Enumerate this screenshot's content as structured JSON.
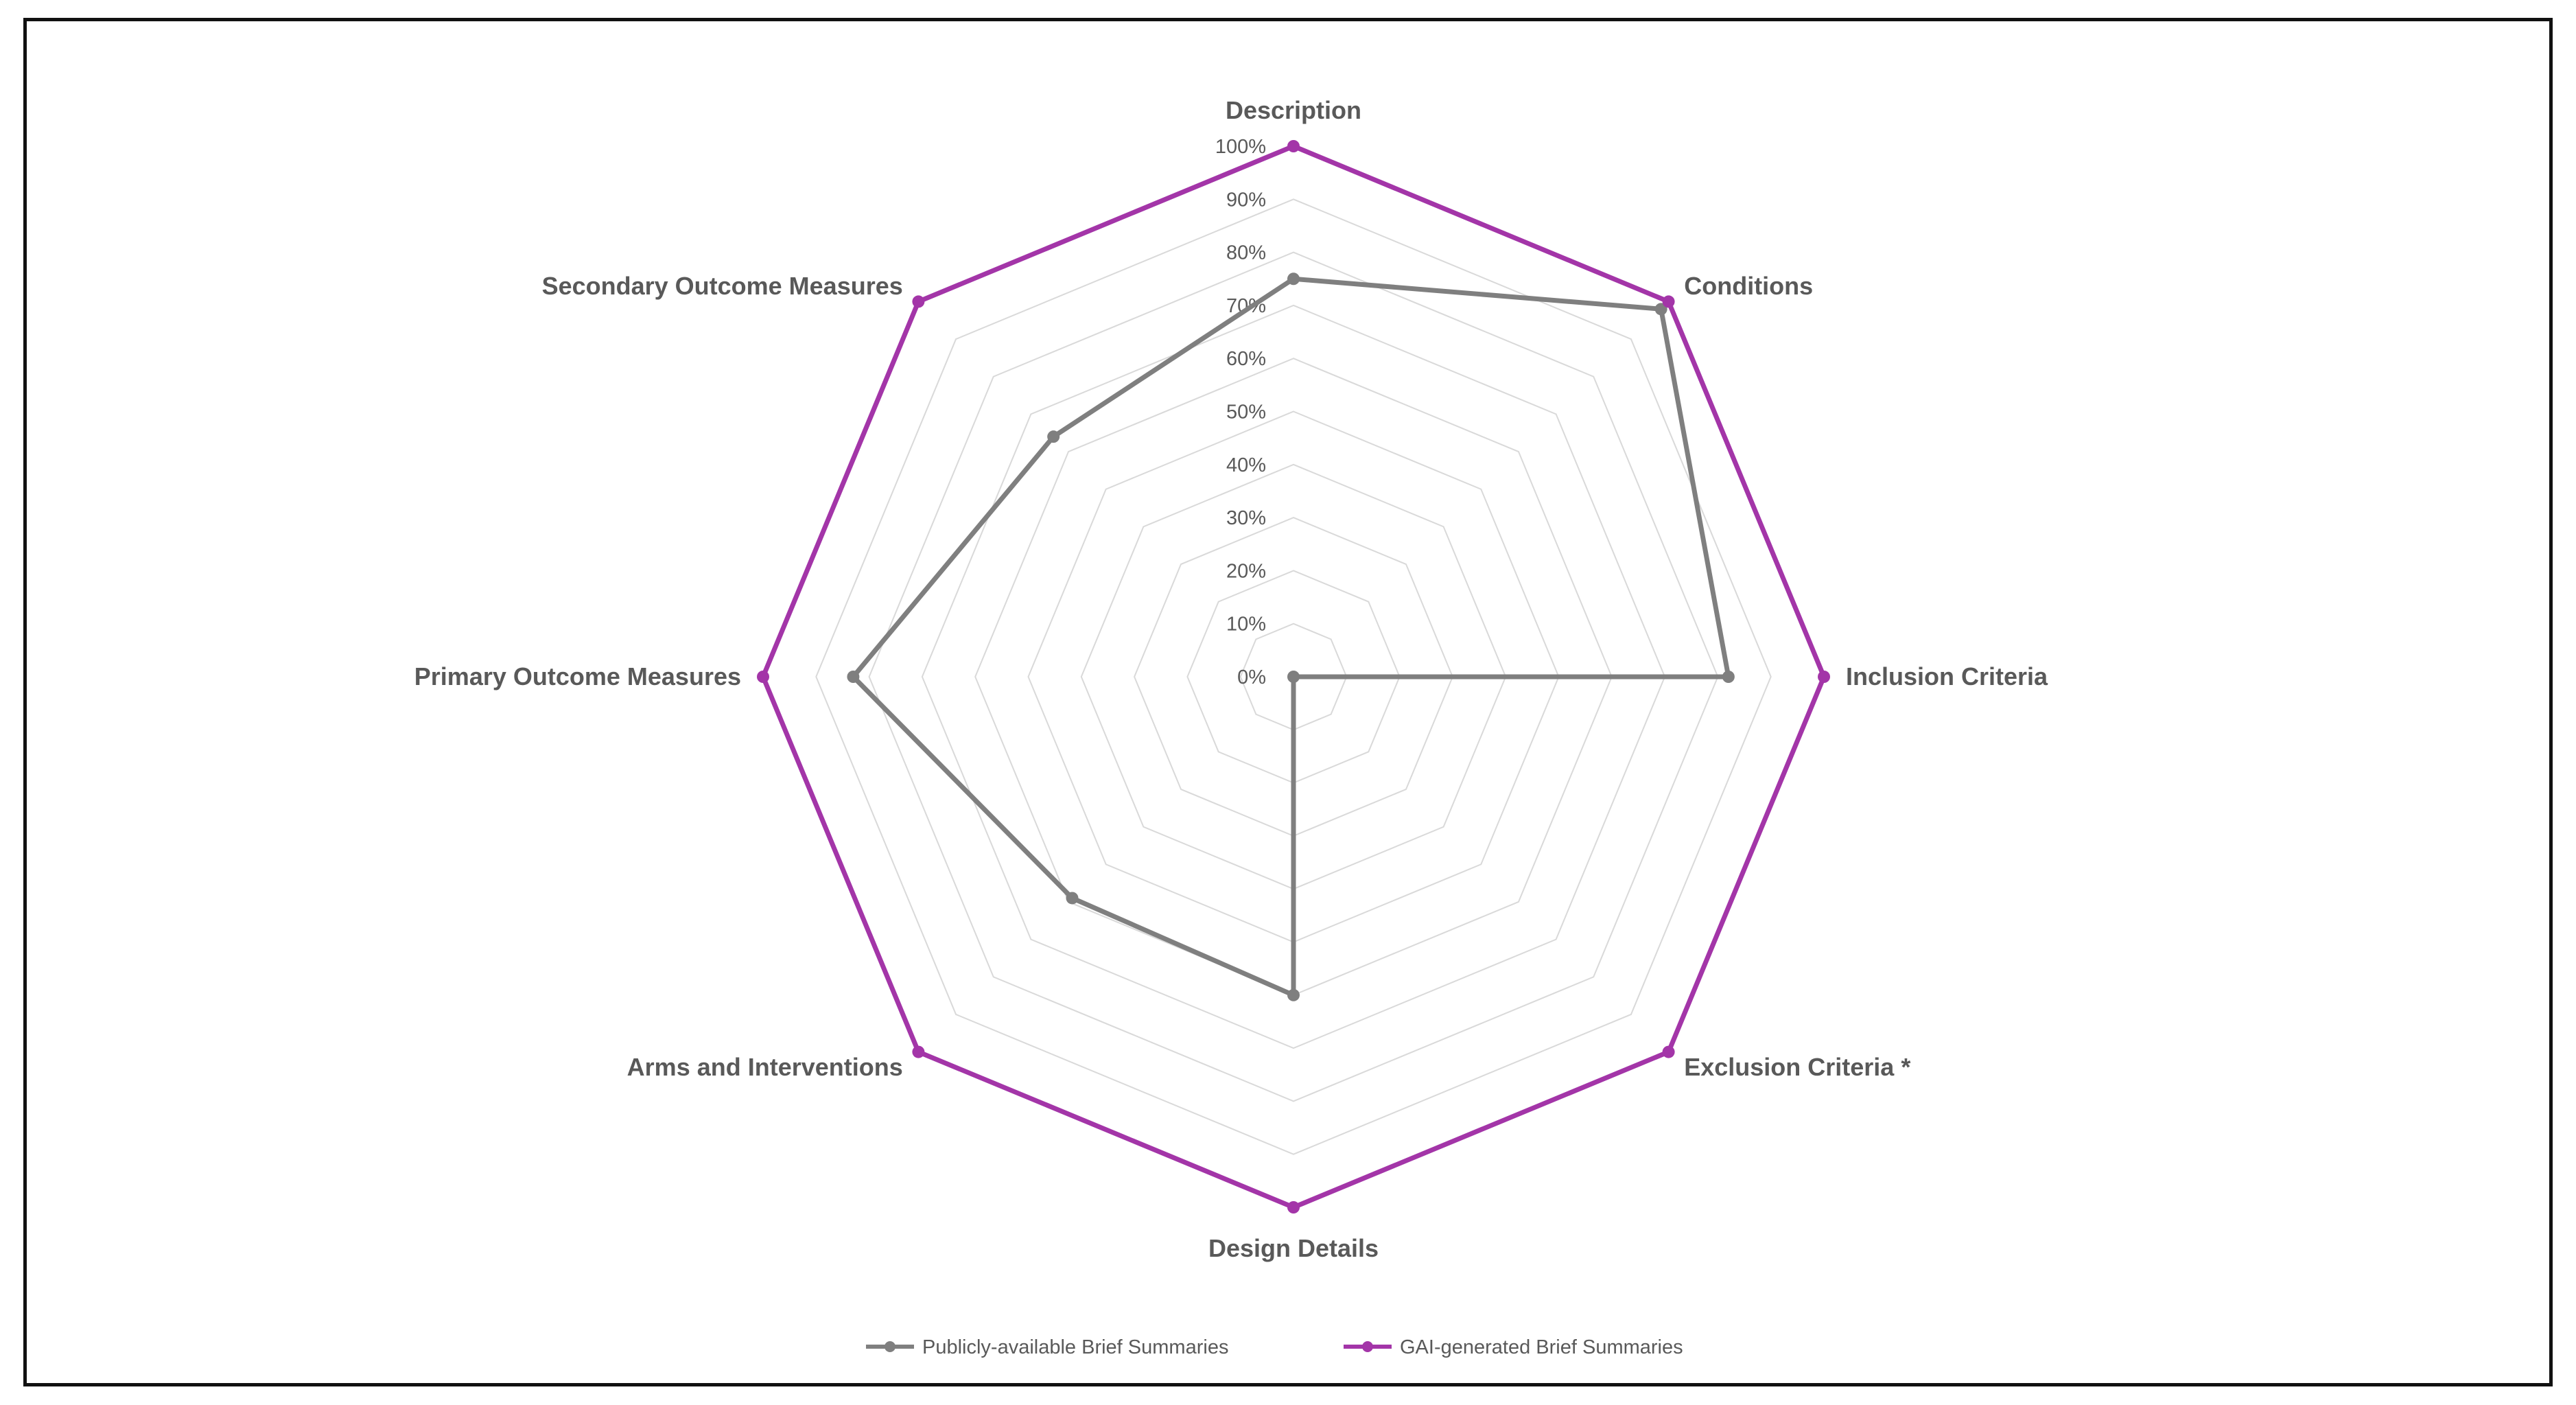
{
  "chart_data": {
    "type": "radar",
    "title": "",
    "categories": [
      "Description",
      "Conditions",
      "Inclusion Criteria",
      "Exclusion Criteria *",
      "Design Details",
      "Arms and Interventions",
      "Primary Outcome Measures",
      "Secondary Outcome Measures"
    ],
    "r_ticks": [
      "0%",
      "10%",
      "20%",
      "30%",
      "40%",
      "50%",
      "60%",
      "70%",
      "80%",
      "90%",
      "100%"
    ],
    "rlim": [
      0,
      100
    ],
    "grid": true,
    "legend_position": "bottom",
    "series": [
      {
        "name": "Publicly-available Brief Summaries",
        "color": "#7f7f7f",
        "values": [
          75,
          98,
          82,
          0,
          60,
          59,
          83,
          64
        ]
      },
      {
        "name": "GAI-generated Brief Summaries",
        "color": "#a335a8",
        "values": [
          100,
          100,
          100,
          100,
          100,
          100,
          100,
          100
        ]
      }
    ]
  }
}
